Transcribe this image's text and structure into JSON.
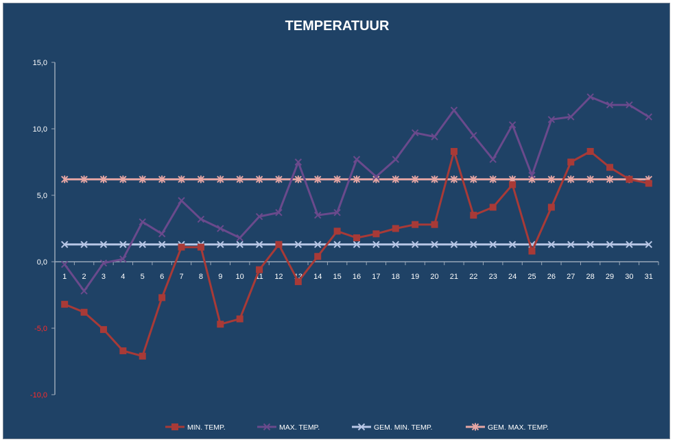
{
  "chart_data": {
    "type": "line",
    "title": "TEMPERATUUR",
    "categories": [
      "1",
      "2",
      "3",
      "4",
      "5",
      "6",
      "7",
      "8",
      "9",
      "10",
      "11",
      "12",
      "13",
      "14",
      "15",
      "16",
      "17",
      "18",
      "19",
      "20",
      "21",
      "22",
      "23",
      "24",
      "25",
      "26",
      "27",
      "28",
      "29",
      "30",
      "31"
    ],
    "ylim": [
      -10,
      15
    ],
    "yticks": [
      "15,0",
      "10,0",
      "5,0",
      "0,0",
      "-5,0",
      "-10,0"
    ],
    "ytick_values": [
      15,
      10,
      5,
      0,
      -5,
      -10
    ],
    "grid": false,
    "legend_position": "bottom",
    "series": [
      {
        "name": "MIN. TEMP.",
        "color": "#a83a37",
        "marker": "square",
        "values": [
          -3.2,
          -3.8,
          -5.1,
          -6.7,
          -7.1,
          -2.7,
          1.1,
          1.1,
          -4.7,
          -4.3,
          -0.6,
          1.3,
          -1.5,
          0.4,
          2.3,
          1.8,
          2.1,
          2.5,
          2.8,
          2.8,
          8.3,
          3.5,
          4.1,
          5.8,
          0.8,
          4.1,
          7.5,
          8.3,
          7.1,
          6.2,
          5.9
        ]
      },
      {
        "name": "MAX. TEMP.",
        "color": "#6a4a8c",
        "marker": "x",
        "values": [
          -0.2,
          -2.2,
          -0.1,
          0.2,
          3.0,
          2.1,
          4.6,
          3.2,
          2.5,
          1.8,
          3.4,
          3.7,
          7.5,
          3.5,
          3.7,
          7.7,
          6.4,
          7.7,
          9.7,
          9.4,
          11.4,
          9.5,
          7.7,
          10.3,
          6.5,
          10.7,
          10.9,
          12.4,
          11.8,
          11.8,
          10.9
        ]
      },
      {
        "name": "GEM. MIN. TEMP.",
        "color": "#b8c7e6",
        "marker": "x",
        "values": [
          1.3,
          1.3,
          1.3,
          1.3,
          1.3,
          1.3,
          1.3,
          1.3,
          1.3,
          1.3,
          1.3,
          1.3,
          1.3,
          1.3,
          1.3,
          1.3,
          1.3,
          1.3,
          1.3,
          1.3,
          1.3,
          1.3,
          1.3,
          1.3,
          1.3,
          1.3,
          1.3,
          1.3,
          1.3,
          1.3,
          1.3
        ]
      },
      {
        "name": "GEM. MAX. TEMP.",
        "color": "#e6a6a4",
        "marker": "star",
        "values": [
          6.2,
          6.2,
          6.2,
          6.2,
          6.2,
          6.2,
          6.2,
          6.2,
          6.2,
          6.2,
          6.2,
          6.2,
          6.2,
          6.2,
          6.2,
          6.2,
          6.2,
          6.2,
          6.2,
          6.2,
          6.2,
          6.2,
          6.2,
          6.2,
          6.2,
          6.2,
          6.2,
          6.2,
          6.2,
          6.2,
          6.2
        ]
      }
    ],
    "colors": {
      "background": "#1f4266",
      "axis": "#9aa8b8",
      "label": "#ffffff",
      "negative_label": "#ff2a2a"
    }
  }
}
